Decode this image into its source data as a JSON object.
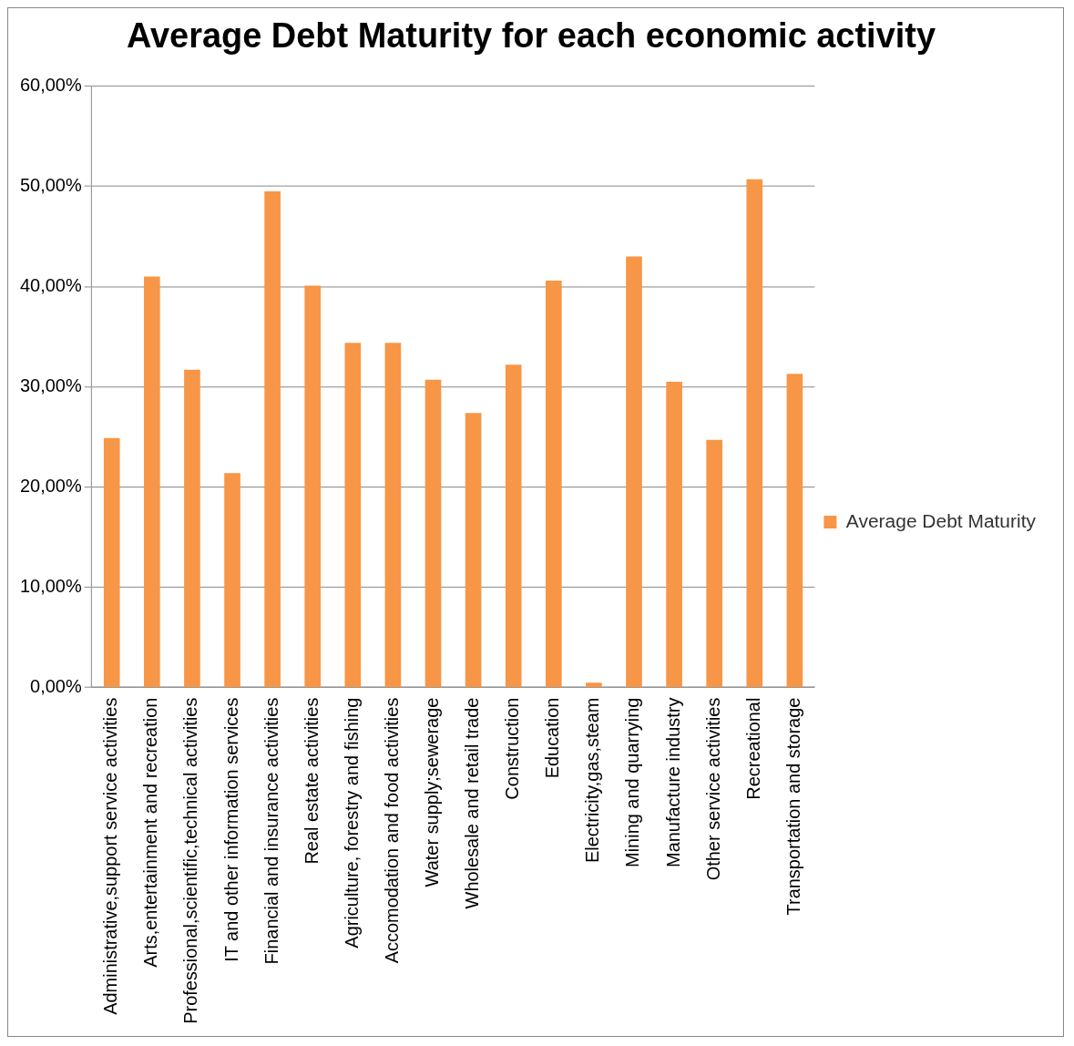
{
  "chart_data": {
    "type": "bar",
    "title": "Average Debt Maturity for each economic activity",
    "categories": [
      "Administrative,support service activities",
      "Arts,entertainment and recreation",
      "Professional,scientific,technical activities",
      "IT and other information services",
      "Financial and insurance activities",
      "Real estate activities",
      "Agriculture, forestry and fishing",
      "Accomodation and food activities",
      "Water supply;sewerage",
      "Wholesale and retail trade",
      "Construction",
      "Education",
      "Electricity,gas,steam",
      "Mining and quarrying",
      "Manufacture industry",
      "Other service activities",
      "Recreational",
      "Transportation and storage"
    ],
    "series": [
      {
        "name": "Average Debt Maturity",
        "color": "#f79646",
        "values": [
          24.9,
          41.0,
          31.7,
          21.4,
          49.5,
          40.1,
          34.4,
          34.4,
          30.7,
          27.4,
          32.2,
          40.6,
          0.5,
          43.0,
          30.5,
          24.7,
          50.7,
          31.3
        ]
      }
    ],
    "ylim": [
      0,
      60
    ],
    "yticks": [
      {
        "value": 0,
        "label": "0,00%"
      },
      {
        "value": 10,
        "label": "10,00%"
      },
      {
        "value": 20,
        "label": "20,00%"
      },
      {
        "value": 30,
        "label": "30,00%"
      },
      {
        "value": 40,
        "label": "40,00%"
      },
      {
        "value": 50,
        "label": "50,00%"
      },
      {
        "value": 60,
        "label": "60,00%"
      }
    ],
    "grid": "y",
    "legend": "right"
  }
}
